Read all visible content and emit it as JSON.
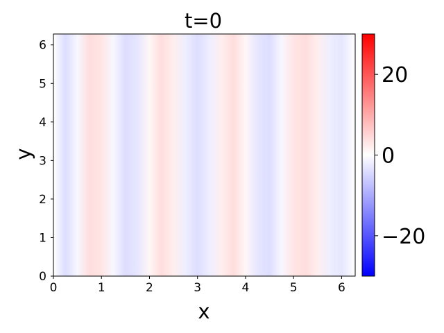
{
  "chart_data": {
    "type": "heatmap",
    "title": "t=0",
    "xlabel": "x",
    "ylabel": "y",
    "xlim": [
      0,
      6.283
    ],
    "ylim": [
      0,
      6.283
    ],
    "xticks": [
      0,
      1,
      2,
      3,
      4,
      5,
      6
    ],
    "yticks": [
      0,
      1,
      2,
      3,
      4,
      5,
      6
    ],
    "field": {
      "varies_along": "x",
      "uniform_along": "y",
      "x": [
        0.0,
        0.25,
        0.5,
        0.75,
        1.0,
        1.25,
        1.5,
        1.75,
        2.0,
        2.25,
        2.5,
        2.75,
        3.0,
        3.25,
        3.5,
        3.75,
        4.0,
        4.25,
        4.5,
        4.75,
        5.0,
        5.25,
        5.5,
        5.75,
        6.0,
        6.283
      ],
      "value": [
        0,
        -4,
        -1,
        4,
        3,
        -1,
        -4,
        -3,
        1,
        4,
        2,
        -2,
        -4,
        -2,
        2,
        4,
        1,
        -3,
        -4,
        -1,
        3,
        4,
        2,
        -2,
        -3,
        0
      ]
    },
    "colorbar": {
      "colormap": "bwr",
      "vmin": -30,
      "vmax": 30,
      "ticks": [
        -20,
        0,
        20
      ],
      "tick_labels": [
        "−20",
        "0",
        "20"
      ],
      "color_low": "#0000ff",
      "color_mid": "#ffffff",
      "color_high": "#ff0000"
    }
  }
}
